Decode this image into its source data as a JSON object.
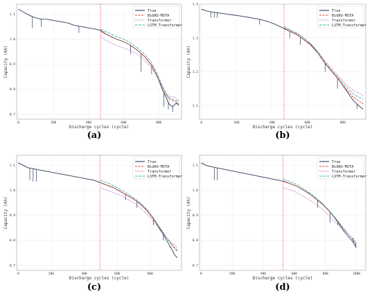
{
  "chart_data": [
    {
      "panel": "(a)",
      "type": "line",
      "xlabel": "Discharge cycles (cycle)",
      "ylabel": "Capacity (Ah)",
      "xlim": [
        -10,
        930
      ],
      "ylim": [
        0.68,
        1.14
      ],
      "xticks": [
        {
          "v": 0,
          "label": "0"
        },
        {
          "v": 200,
          "label": "200"
        },
        {
          "v": 400,
          "label": "400"
        },
        {
          "v": 600,
          "label": "600"
        },
        {
          "v": 800,
          "label": "800"
        }
      ],
      "yticks": [
        {
          "v": 0.7,
          "label": "0.7"
        },
        {
          "v": 0.8,
          "label": "0.8"
        },
        {
          "v": 0.9,
          "label": "0.9"
        },
        {
          "v": 1.0,
          "label": "1.0"
        },
        {
          "v": 1.1,
          "label": "1.1"
        }
      ],
      "split_x": 468,
      "grid": true,
      "legend": "top-right",
      "series": [
        {
          "name": "True",
          "color": "#2b3a55",
          "style": "solid",
          "x": [
            0,
            25,
            50,
            80,
            100,
            130,
            160,
            200,
            240,
            280,
            320,
            360,
            400,
            440,
            470,
            500,
            530,
            560,
            600,
            640,
            680,
            720,
            760,
            790,
            820,
            840,
            860,
            880,
            900,
            915
          ],
          "y": [
            1.12,
            1.11,
            1.1,
            1.09,
            1.085,
            1.08,
            1.08,
            1.075,
            1.07,
            1.065,
            1.055,
            1.05,
            1.045,
            1.04,
            1.035,
            1.02,
            1.01,
            1.0,
            0.99,
            0.975,
            0.955,
            0.93,
            0.895,
            0.855,
            0.8,
            0.77,
            0.74,
            0.73,
            0.745,
            0.735
          ],
          "spikes": [
            [
              80,
              1.045
            ],
            [
              130,
              1.05
            ],
            [
              345,
              1.025
            ],
            [
              640,
              0.94
            ],
            [
              700,
              0.87
            ],
            [
              760,
              0.86
            ],
            [
              830,
              0.73
            ],
            [
              855,
              0.72
            ],
            [
              880,
              0.71
            ],
            [
              900,
              0.74
            ]
          ]
        },
        {
          "name": "BiGRU-MSTA",
          "color": "#d8432f",
          "style": "dash",
          "x": [
            470,
            500,
            530,
            560,
            600,
            640,
            680,
            720,
            760,
            790,
            820,
            840,
            860,
            880,
            900,
            915
          ],
          "y": [
            1.03,
            1.02,
            1.01,
            1.0,
            0.99,
            0.975,
            0.955,
            0.93,
            0.895,
            0.855,
            0.81,
            0.78,
            0.76,
            0.755,
            0.75,
            0.74
          ]
        },
        {
          "name": "Transformer",
          "color": "#b04fc4",
          "style": "dot",
          "x": [
            470,
            500,
            530,
            560,
            600,
            640,
            680,
            720,
            760,
            790,
            820,
            840,
            860,
            880,
            900,
            915
          ],
          "y": [
            1.01,
            0.995,
            0.985,
            0.975,
            0.965,
            0.955,
            0.94,
            0.915,
            0.885,
            0.85,
            0.81,
            0.785,
            0.77,
            0.77,
            0.765,
            0.755
          ]
        },
        {
          "name": "LSTM-Transformer",
          "color": "#2aa89e",
          "style": "dashdot",
          "x": [
            470,
            500,
            530,
            560,
            600,
            640,
            680,
            720,
            760,
            790,
            820,
            840,
            860,
            880,
            900,
            915
          ],
          "y": [
            1.04,
            1.03,
            1.02,
            1.01,
            1.0,
            0.985,
            0.965,
            0.94,
            0.905,
            0.865,
            0.815,
            0.785,
            0.765,
            0.76,
            0.755,
            0.75
          ]
        }
      ]
    },
    {
      "panel": "(b)",
      "type": "line",
      "xlabel": "Discharge cycles (cycle)",
      "ylabel": "Capacity (Ah)",
      "xlim": [
        -10,
        930
      ],
      "ylim": [
        1.06,
        1.4
      ],
      "xticks": [
        {
          "v": 0,
          "label": "0"
        },
        {
          "v": 200,
          "label": "200"
        },
        {
          "v": 400,
          "label": "400"
        },
        {
          "v": 600,
          "label": "600"
        },
        {
          "v": 800,
          "label": "800"
        }
      ],
      "yticks": [
        {
          "v": 1.1,
          "label": "1.1"
        },
        {
          "v": 1.2,
          "label": "1.2"
        },
        {
          "v": 1.3,
          "label": "1.3"
        },
        {
          "v": 1.4,
          "label": "1.4"
        }
      ],
      "split_x": 468,
      "grid": true,
      "legend": "top-right",
      "series": [
        {
          "name": "True",
          "color": "#2b3a55",
          "style": "solid",
          "x": [
            0,
            30,
            60,
            100,
            140,
            180,
            220,
            260,
            300,
            340,
            380,
            420,
            460,
            500,
            540,
            580,
            620,
            660,
            700,
            740,
            780,
            820,
            860,
            890,
            915
          ],
          "y": [
            1.385,
            1.38,
            1.377,
            1.374,
            1.371,
            1.368,
            1.365,
            1.362,
            1.358,
            1.354,
            1.348,
            1.34,
            1.33,
            1.32,
            1.31,
            1.295,
            1.28,
            1.255,
            1.225,
            1.2,
            1.175,
            1.145,
            1.115,
            1.1,
            1.09
          ],
          "spikes": [
            [
              55,
              1.36
            ],
            [
              75,
              1.36
            ],
            [
              90,
              1.36
            ],
            [
              330,
              1.34
            ],
            [
              500,
              1.3
            ],
            [
              560,
              1.28
            ],
            [
              700,
              1.2
            ],
            [
              770,
              1.15
            ],
            [
              880,
              1.09
            ]
          ]
        },
        {
          "name": "BiGRU-MSTA",
          "color": "#d8432f",
          "style": "dash",
          "x": [
            470,
            500,
            540,
            580,
            620,
            660,
            700,
            740,
            780,
            820,
            860,
            890,
            915
          ],
          "y": [
            1.33,
            1.32,
            1.31,
            1.295,
            1.278,
            1.255,
            1.225,
            1.2,
            1.175,
            1.148,
            1.125,
            1.115,
            1.105
          ]
        },
        {
          "name": "Transformer",
          "color": "#b04fc4",
          "style": "dot",
          "x": [
            470,
            500,
            540,
            580,
            620,
            660,
            700,
            740,
            780,
            820,
            860,
            890,
            915
          ],
          "y": [
            1.33,
            1.322,
            1.313,
            1.3,
            1.283,
            1.26,
            1.232,
            1.208,
            1.185,
            1.162,
            1.145,
            1.138,
            1.13
          ]
        },
        {
          "name": "LSTM-Transformer",
          "color": "#2aa89e",
          "style": "dashdot",
          "x": [
            470,
            500,
            540,
            580,
            620,
            660,
            700,
            740,
            780,
            820,
            860,
            890,
            915
          ],
          "y": [
            1.335,
            1.325,
            1.315,
            1.3,
            1.282,
            1.258,
            1.228,
            1.203,
            1.18,
            1.155,
            1.135,
            1.125,
            1.118
          ]
        }
      ]
    },
    {
      "panel": "(c)",
      "type": "line",
      "xlabel": "Discharge cycles (cycle)",
      "ylabel": "Capacity (Ah)",
      "xlim": [
        -10,
        990
      ],
      "ylim": [
        0.68,
        1.14
      ],
      "xticks": [
        {
          "v": 0,
          "label": "0"
        },
        {
          "v": 200,
          "label": "200"
        },
        {
          "v": 400,
          "label": "400"
        },
        {
          "v": 600,
          "label": "600"
        },
        {
          "v": 800,
          "label": "800"
        }
      ],
      "yticks": [
        {
          "v": 0.7,
          "label": "0.7"
        },
        {
          "v": 0.8,
          "label": "0.8"
        },
        {
          "v": 0.9,
          "label": "0.9"
        },
        {
          "v": 1.0,
          "label": "1.0"
        },
        {
          "v": 1.1,
          "label": "1.1"
        }
      ],
      "split_x": 495,
      "grid": true,
      "legend": "top-right",
      "series": [
        {
          "name": "True",
          "color": "#2b3a55",
          "style": "solid",
          "x": [
            0,
            30,
            60,
            100,
            140,
            180,
            220,
            260,
            300,
            340,
            380,
            420,
            460,
            500,
            540,
            580,
            620,
            660,
            700,
            740,
            780,
            820,
            860,
            900,
            930,
            950,
            965
          ],
          "y": [
            1.11,
            1.1,
            1.09,
            1.085,
            1.08,
            1.075,
            1.07,
            1.065,
            1.06,
            1.055,
            1.05,
            1.045,
            1.04,
            1.03,
            1.02,
            1.01,
            0.995,
            0.98,
            0.965,
            0.945,
            0.92,
            0.885,
            0.845,
            0.8,
            0.765,
            0.74,
            0.73
          ],
          "spikes": [
            [
              70,
              1.04
            ],
            [
              90,
              1.035
            ],
            [
              110,
              1.035
            ],
            [
              650,
              0.96
            ],
            [
              720,
              0.93
            ],
            [
              820,
              0.86
            ],
            [
              880,
              0.8
            ],
            [
              920,
              0.77
            ]
          ]
        },
        {
          "name": "BiGRU-MSTA",
          "color": "#d8432f",
          "style": "dash",
          "x": [
            500,
            540,
            580,
            620,
            660,
            700,
            740,
            780,
            820,
            860,
            900,
            930,
            950,
            965
          ],
          "y": [
            1.03,
            1.02,
            1.01,
            0.995,
            0.98,
            0.965,
            0.945,
            0.92,
            0.885,
            0.848,
            0.81,
            0.785,
            0.77,
            0.76
          ]
        },
        {
          "name": "Transformer",
          "color": "#b04fc4",
          "style": "dot",
          "x": [
            500,
            540,
            580,
            620,
            660,
            700,
            740,
            780,
            820,
            860,
            900,
            930,
            950,
            965
          ],
          "y": [
            1.01,
            1.0,
            0.99,
            0.98,
            0.965,
            0.95,
            0.93,
            0.905,
            0.875,
            0.84,
            0.81,
            0.79,
            0.78,
            0.77
          ]
        },
        {
          "name": "LSTM-Transformer",
          "color": "#2aa89e",
          "style": "dashdot",
          "x": [
            500,
            540,
            580,
            620,
            660,
            700,
            740,
            780,
            820,
            860,
            900,
            930,
            950,
            965
          ],
          "y": [
            1.04,
            1.03,
            1.018,
            1.003,
            0.988,
            0.97,
            0.95,
            0.924,
            0.89,
            0.85,
            0.81,
            0.782,
            0.765,
            0.755
          ]
        }
      ]
    },
    {
      "panel": "(d)",
      "type": "line",
      "xlabel": "Discharge cycles (cycle)",
      "ylabel": "Capacity (Ah)",
      "xlim": [
        -10,
        1060
      ],
      "ylim": [
        0.68,
        1.14
      ],
      "xticks": [
        {
          "v": 0,
          "label": "0"
        },
        {
          "v": 200,
          "label": "200"
        },
        {
          "v": 400,
          "label": "400"
        },
        {
          "v": 600,
          "label": "600"
        },
        {
          "v": 800,
          "label": "800"
        },
        {
          "v": 1000,
          "label": "1000"
        }
      ],
      "yticks": [
        {
          "v": 0.7,
          "label": "0.7"
        },
        {
          "v": 0.8,
          "label": "0.8"
        },
        {
          "v": 0.9,
          "label": "0.9"
        },
        {
          "v": 1.0,
          "label": "1.0"
        },
        {
          "v": 1.1,
          "label": "1.1"
        }
      ],
      "split_x": 528,
      "grid": true,
      "legend": "top-right",
      "series": [
        {
          "name": "True",
          "color": "#2b3a55",
          "style": "solid",
          "x": [
            0,
            30,
            60,
            100,
            140,
            180,
            220,
            260,
            300,
            340,
            380,
            420,
            460,
            500,
            540,
            580,
            620,
            660,
            700,
            740,
            780,
            820,
            860,
            900,
            940,
            970,
            990,
            1000
          ],
          "y": [
            1.11,
            1.1,
            1.095,
            1.09,
            1.085,
            1.08,
            1.075,
            1.07,
            1.065,
            1.06,
            1.055,
            1.05,
            1.045,
            1.04,
            1.035,
            1.025,
            1.015,
            1.0,
            0.985,
            0.965,
            0.945,
            0.92,
            0.89,
            0.855,
            0.82,
            0.8,
            0.78,
            0.77
          ],
          "spikes": [
            [
              85,
              1.04
            ],
            [
              105,
              1.04
            ],
            [
              750,
              0.93
            ],
            [
              830,
              0.87
            ],
            [
              880,
              0.86
            ],
            [
              980,
              0.81
            ],
            [
              995,
              0.79
            ]
          ]
        },
        {
          "name": "BiGRU-MSTA",
          "color": "#d8432f",
          "style": "dash",
          "x": [
            530,
            580,
            620,
            660,
            700,
            740,
            780,
            820,
            860,
            900,
            940,
            970,
            990,
            1000
          ],
          "y": [
            1.035,
            1.025,
            1.015,
            1.0,
            0.985,
            0.965,
            0.945,
            0.92,
            0.892,
            0.86,
            0.83,
            0.81,
            0.795,
            0.79
          ]
        },
        {
          "name": "Transformer",
          "color": "#b04fc4",
          "style": "dot",
          "x": [
            530,
            580,
            620,
            660,
            700,
            740,
            780,
            820,
            860,
            900,
            940,
            970,
            990,
            1000
          ],
          "y": [
            1.01,
            1.0,
            0.99,
            0.975,
            0.96,
            0.945,
            0.925,
            0.9,
            0.875,
            0.85,
            0.82,
            0.8,
            0.785,
            0.78
          ]
        },
        {
          "name": "LSTM-Transformer",
          "color": "#2aa89e",
          "style": "dashdot",
          "x": [
            530,
            580,
            620,
            660,
            700,
            740,
            780,
            820,
            860,
            900,
            940,
            970,
            990,
            1000
          ],
          "y": [
            1.045,
            1.033,
            1.022,
            1.006,
            0.99,
            0.97,
            0.948,
            0.922,
            0.893,
            0.862,
            0.83,
            0.808,
            0.792,
            0.785
          ]
        }
      ]
    }
  ]
}
